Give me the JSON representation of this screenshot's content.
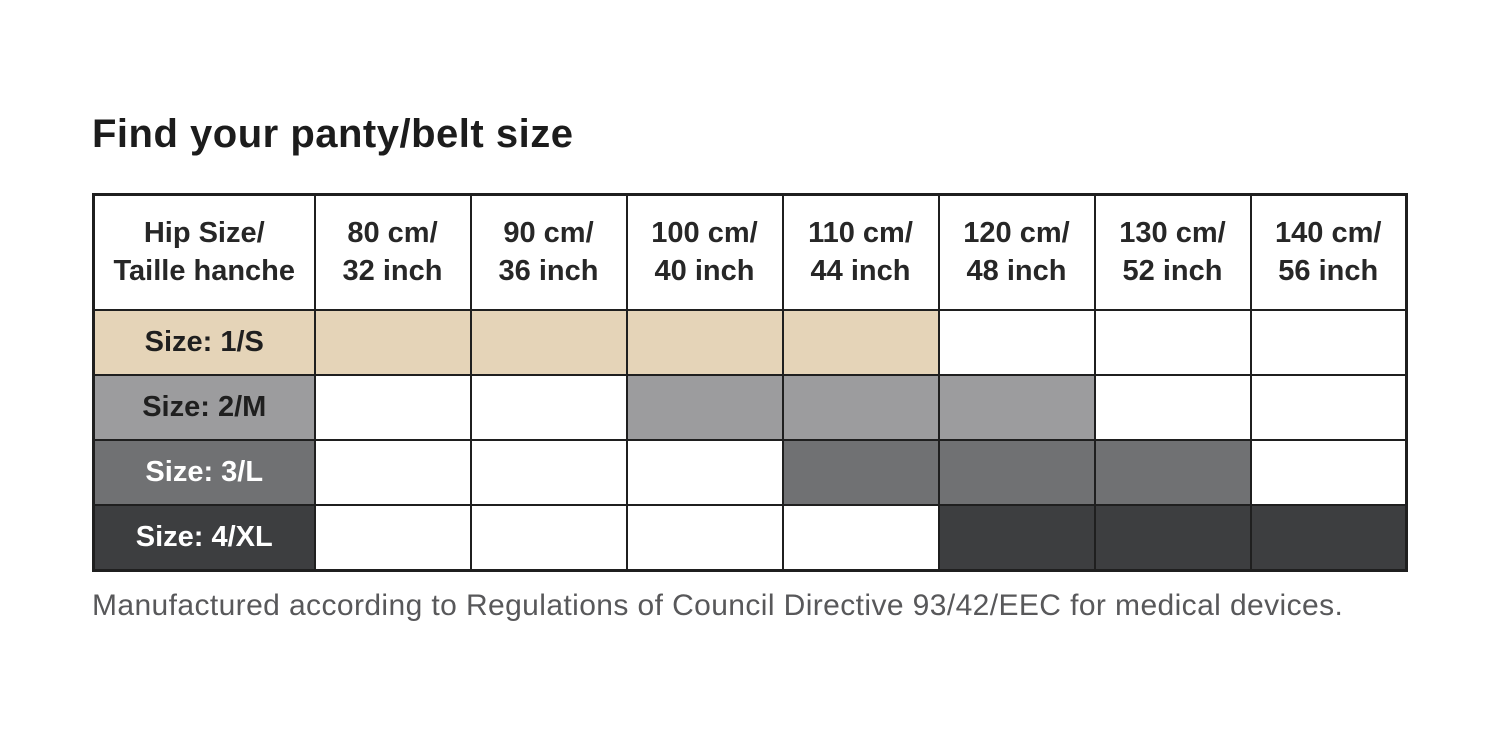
{
  "title": "Find your panty/belt size",
  "footnote": "Manufactured according to Regulations of Council Directive 93/42/EEC for medical devices.",
  "colors": {
    "size_1s_fill": "#e5d4b8",
    "size_2m_fill": "#9c9c9e",
    "size_3l_fill": "#707173",
    "size_4xl_fill": "#3d3e40",
    "table_border": "#1f1f1f",
    "unshaded_cell": "#ffffff",
    "footnote_text": "#58585a"
  },
  "chart_data": {
    "type": "table",
    "title": "Find your panty/belt size",
    "header": [
      "Hip Size/\nTaille hanche",
      "80 cm/\n32 inch",
      "90 cm/\n36 inch",
      "100 cm/\n40 inch",
      "110 cm/\n44 inch",
      "120 cm/\n48 inch",
      "130 cm/\n52 inch",
      "140 cm/\n56 inch"
    ],
    "hip_columns_cm": [
      80,
      90,
      100,
      110,
      120,
      130,
      140
    ],
    "hip_columns_inch": [
      32,
      36,
      40,
      44,
      48,
      52,
      56
    ],
    "rows": [
      {
        "label": "Size: 1/S",
        "fill": "#e5d4b8",
        "label_text_color": "#1f1f1f",
        "shaded": [
          1,
          1,
          1,
          1,
          0,
          0,
          0
        ]
      },
      {
        "label": "Size: 2/M",
        "fill": "#9c9c9e",
        "label_text_color": "#1f1f1f",
        "shaded": [
          0,
          0,
          1,
          1,
          1,
          0,
          0
        ]
      },
      {
        "label": "Size: 3/L",
        "fill": "#707173",
        "label_text_color": "#ffffff",
        "shaded": [
          0,
          0,
          0,
          1,
          1,
          1,
          0
        ]
      },
      {
        "label": "Size: 4/XL",
        "fill": "#3d3e40",
        "label_text_color": "#ffffff",
        "shaded": [
          0,
          0,
          0,
          0,
          1,
          1,
          1
        ]
      }
    ],
    "footnote": "Manufactured according to Regulations of Council Directive 93/42/EEC for medical devices."
  }
}
